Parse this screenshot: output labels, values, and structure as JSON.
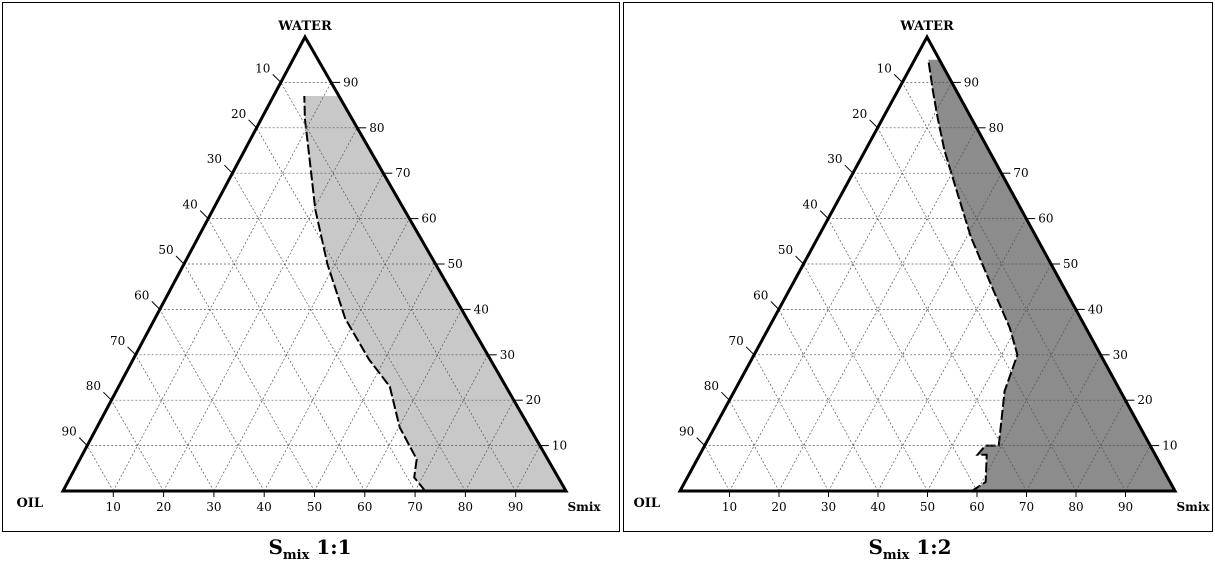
{
  "diagrams": [
    {
      "caption_main": "S",
      "caption_sub": "mix",
      "caption_ratio": "1:1",
      "vertex_top": "WATER",
      "vertex_left": "OIL",
      "vertex_right": "Smix",
      "left_ticks": [
        "10",
        "20",
        "30",
        "40",
        "50",
        "60",
        "70",
        "80",
        "90"
      ],
      "right_ticks": [
        "90",
        "80",
        "70",
        "60",
        "50",
        "40",
        "30",
        "20",
        "10"
      ],
      "bottom_ticks": [
        "10",
        "20",
        "30",
        "40",
        "50",
        "60",
        "70",
        "80",
        "90"
      ],
      "fill_color": "#c8c8c8"
    },
    {
      "caption_main": "S",
      "caption_sub": "mix",
      "caption_ratio": "1:2",
      "vertex_top": "WATER",
      "vertex_left": "OIL",
      "vertex_right": "Smix",
      "left_ticks": [
        "10",
        "20",
        "30",
        "40",
        "50",
        "60",
        "70",
        "80",
        "90"
      ],
      "right_ticks": [
        "90",
        "80",
        "70",
        "60",
        "50",
        "40",
        "30",
        "20",
        "10"
      ],
      "bottom_ticks": [
        "10",
        "20",
        "30",
        "40",
        "50",
        "60",
        "70",
        "80",
        "90"
      ],
      "fill_color": "#8c8c8c"
    }
  ]
}
